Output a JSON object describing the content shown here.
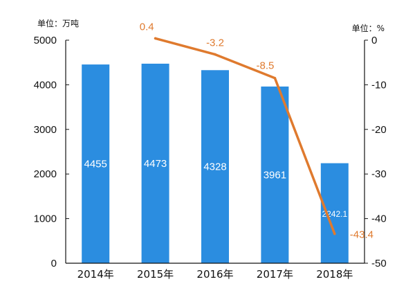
{
  "left_unit": "单位：万吨",
  "right_unit": "单位：%",
  "colors": {
    "bar": "#2b8de0",
    "line": "#df7a2e",
    "axis": "#111111"
  },
  "chart_data": {
    "type": "bar",
    "categories": [
      "2014年",
      "2015年",
      "2016年",
      "2017年",
      "2018年"
    ],
    "series": [
      {
        "type": "bar",
        "values": [
          4455,
          4473,
          4328,
          3961,
          2242.1
        ],
        "labels": [
          "4455",
          "4473",
          "4328",
          "3961",
          "2242.1"
        ],
        "axis": "left"
      },
      {
        "type": "line",
        "x": [
          "2015年",
          "2016年",
          "2017年",
          "2018年"
        ],
        "values": [
          0.4,
          -3.2,
          -8.5,
          -43.4
        ],
        "labels": [
          "0.4",
          "-3.2",
          "-8.5",
          "-43.4"
        ],
        "axis": "right"
      }
    ],
    "y_left": {
      "ylim": [
        0,
        5000
      ],
      "ticks": [
        "0",
        "1000",
        "2000",
        "3000",
        "4000",
        "5000"
      ]
    },
    "y_right": {
      "ylim": [
        -50,
        0
      ],
      "ticks": [
        "0",
        "-10",
        "-20",
        "-30",
        "-40",
        "-50"
      ]
    },
    "grid": false,
    "legend": "none"
  }
}
